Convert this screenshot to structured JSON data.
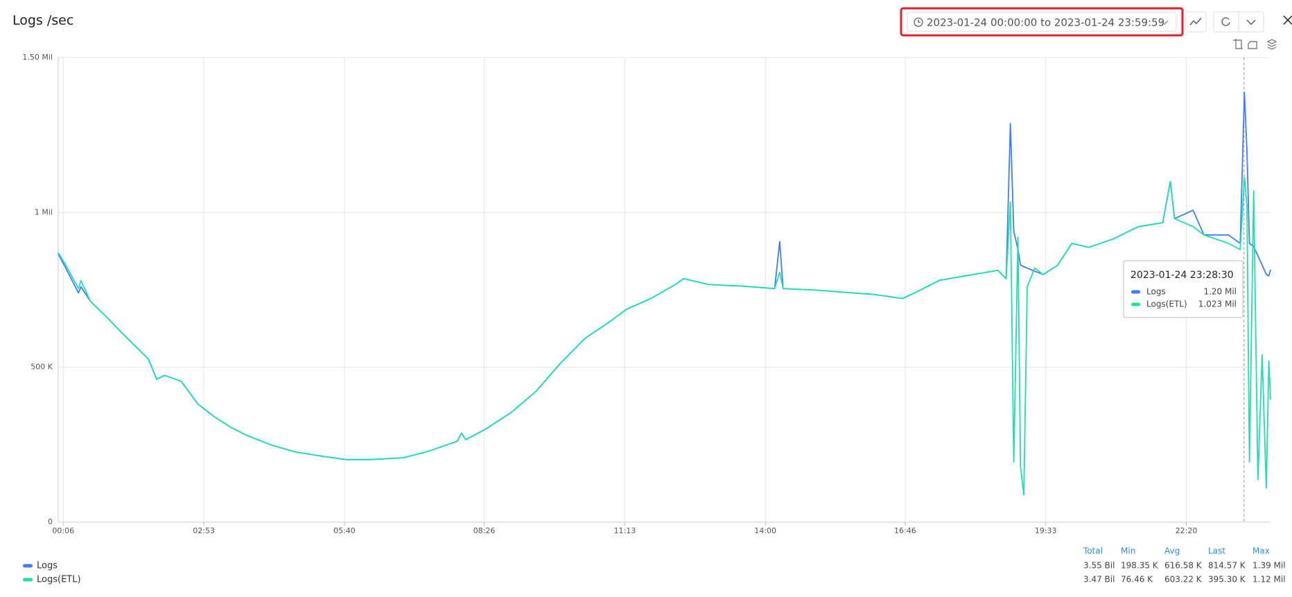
{
  "chart_data": {
    "type": "line",
    "title": "Logs /sec",
    "x": [
      0,
      9,
      24,
      27,
      38,
      58,
      77,
      97,
      107,
      117,
      126,
      146,
      166,
      185,
      205,
      224,
      254,
      283,
      313,
      342,
      371,
      410,
      440,
      474,
      479,
      484,
      508,
      538,
      567,
      597,
      626,
      655,
      675,
      704,
      733,
      743,
      773,
      812,
      851,
      857,
      861,
      900,
      939,
      969,
      1003,
      1018,
      1047,
      1086,
      1116,
      1126,
      1131,
      1135,
      1140,
      1143,
      1147,
      1151,
      1160,
      1170,
      1187,
      1204,
      1224,
      1253,
      1283,
      1312,
      1321,
      1326,
      1348,
      1361,
      1390,
      1404,
      1409,
      1412,
      1415,
      1420,
      1425,
      1430,
      1435,
      1438,
      1440
    ],
    "series": [
      {
        "name": "Logs",
        "color": "#3d7ef7",
        "values": [
          866000,
          820000,
          740000,
          760000,
          714000,
          661000,
          607000,
          554000,
          527000,
          461000,
          474000,
          455000,
          381000,
          341000,
          306000,
          280000,
          248000,
          226000,
          213000,
          202000,
          202000,
          208000,
          229000,
          261000,
          288000,
          266000,
          301000,
          354000,
          421000,
          514000,
          594000,
          647000,
          687000,
          722000,
          767000,
          786000,
          767000,
          762000,
          754000,
          906000,
          754000,
          749000,
          741000,
          735000,
          722000,
          741000,
          781000,
          799000,
          813000,
          786000,
          1287000,
          940000,
          880000,
          830000,
          825000,
          820000,
          810000,
          800000,
          829000,
          900000,
          887000,
          914000,
          954000,
          967000,
          1100000,
          980000,
          1007000,
          927000,
          927000,
          900000,
          1388000,
          1200000,
          900000,
          890000,
          860000,
          830000,
          800000,
          795000,
          815000
        ]
      },
      {
        "name": "Logs(ETL)",
        "color": "#1de0b0",
        "values": [
          870000,
          830000,
          754000,
          780000,
          714000,
          661000,
          607000,
          554000,
          527000,
          461000,
          474000,
          455000,
          381000,
          341000,
          306000,
          280000,
          248000,
          226000,
          213000,
          202000,
          202000,
          208000,
          229000,
          261000,
          288000,
          266000,
          301000,
          354000,
          421000,
          514000,
          594000,
          647000,
          687000,
          722000,
          767000,
          786000,
          767000,
          762000,
          754000,
          807000,
          754000,
          749000,
          741000,
          735000,
          722000,
          741000,
          781000,
          799000,
          813000,
          786000,
          1034000,
          194000,
          920000,
          180000,
          88000,
          760000,
          820000,
          799000,
          829000,
          900000,
          887000,
          914000,
          954000,
          967000,
          1100000,
          980000,
          954000,
          927000,
          900000,
          880000,
          1114000,
          1023000,
          194000,
          1070000,
          137000,
          540000,
          110000,
          520000,
          395000
        ]
      }
    ],
    "xlim": [
      0,
      1440
    ],
    "xticks": [
      {
        "value": 6,
        "label": "00:06"
      },
      {
        "value": 173,
        "label": "02:53"
      },
      {
        "value": 340,
        "label": "05:40"
      },
      {
        "value": 506,
        "label": "08:26"
      },
      {
        "value": 673,
        "label": "11:13"
      },
      {
        "value": 840,
        "label": "14:00"
      },
      {
        "value": 1006,
        "label": "16:46"
      },
      {
        "value": 1173,
        "label": "19:33"
      },
      {
        "value": 1340,
        "label": "22:20"
      }
    ],
    "ylim": [
      0,
      1500000
    ],
    "yticks": [
      0,
      {
        "value": 500000,
        "label": "500 K"
      },
      {
        "value": 1000000,
        "label": "1 Mil"
      },
      {
        "value": 1500000,
        "label": "1.50 Mil"
      }
    ],
    "grid": true
  },
  "time_range": "2023-01-24 00:00:00 to 2023-01-24 23:59:59",
  "tooltip": {
    "time": "2023-01-24 23:28:30",
    "x": 1408.5,
    "entries": [
      [
        "Logs",
        "1.20 Mil"
      ],
      [
        "Logs(ETL)",
        "1.023 Mil"
      ]
    ]
  },
  "summary": {
    "headers": [
      "Total",
      "Min",
      "Avg",
      "Last",
      "Max"
    ],
    "rows": [
      [
        "3.55 Bil",
        "198.35 K",
        "616.58 K",
        "814.57 K",
        "1.39 Mil"
      ],
      [
        "3.47 Bil",
        "76.46 K",
        "603.22 K",
        "395.30 K",
        "1.12 Mil"
      ]
    ]
  }
}
